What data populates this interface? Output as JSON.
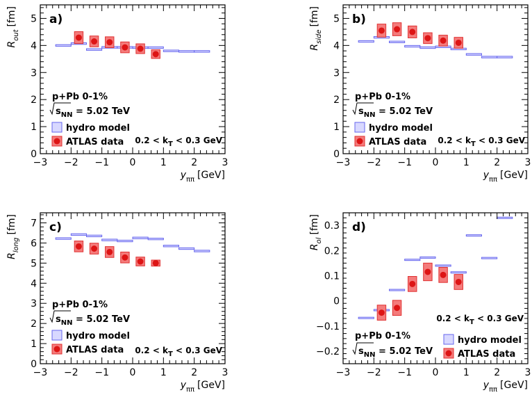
{
  "chart_data": [
    {
      "type": "scatter",
      "label": "a)",
      "xlabel_main": "y",
      "xlabel_sub": "ππ",
      "xlabel_unit": "[GeV]",
      "ylabel_main": "R",
      "ylabel_sub": "out",
      "ylabel_unit": "[fm]",
      "xlim": [
        -3,
        3
      ],
      "ylim": [
        0,
        5.5
      ],
      "xticks": [
        "-3",
        "-2",
        "-1",
        "0",
        "1",
        "2",
        "3"
      ],
      "yticks": [
        "0",
        "1",
        "2",
        "3",
        "4",
        "5"
      ],
      "ytick_values": [
        0,
        1,
        2,
        3,
        4,
        5
      ],
      "system": "p+Pb 0-1%",
      "energy_prefix": "s",
      "energy_sub": "NN",
      "energy_value": " = 5.02 TeV",
      "kt_text_pre": "0.2 < k",
      "kt_text_sub": "T",
      "kt_text_post": " < 0.3 GeV",
      "legend": [
        "hydro model",
        "ATLAS data"
      ],
      "legend_position": "bottom-left",
      "hydro": {
        "x": [
          -2.25,
          -1.75,
          -1.25,
          -0.75,
          -0.25,
          0.25,
          0.75,
          1.25,
          1.75,
          2.25
        ],
        "y": [
          4.0,
          4.07,
          3.85,
          3.93,
          3.93,
          3.92,
          3.92,
          3.8,
          3.78,
          3.78
        ],
        "halfwidth": [
          0.25,
          0.25,
          0.25,
          0.25,
          0.25,
          0.25,
          0.25,
          0.25,
          0.25,
          0.25
        ],
        "err": [
          0.03,
          0.03,
          0.03,
          0.03,
          0.03,
          0.03,
          0.03,
          0.03,
          0.03,
          0.03
        ]
      },
      "atlas": {
        "x": [
          -1.75,
          -1.25,
          -0.75,
          -0.25,
          0.25,
          0.75
        ],
        "y": [
          4.29,
          4.15,
          4.12,
          3.93,
          3.88,
          3.68
        ],
        "syst": [
          0.22,
          0.2,
          0.2,
          0.2,
          0.18,
          0.16
        ],
        "syst_halfwidth": [
          0.14,
          0.14,
          0.14,
          0.14,
          0.14,
          0.14
        ]
      }
    },
    {
      "type": "scatter",
      "label": "b)",
      "xlabel_main": "y",
      "xlabel_sub": "ππ",
      "xlabel_unit": "[GeV]",
      "ylabel_main": "R",
      "ylabel_sub": "side",
      "ylabel_unit": "[fm]",
      "xlim": [
        -3,
        3
      ],
      "ylim": [
        0,
        5.5
      ],
      "xticks": [
        "-3",
        "-2",
        "-1",
        "0",
        "1",
        "2",
        "3"
      ],
      "yticks": [
        "0",
        "1",
        "2",
        "3",
        "4",
        "5"
      ],
      "ytick_values": [
        0,
        1,
        2,
        3,
        4,
        5
      ],
      "system": "p+Pb 0-1%",
      "energy_prefix": "s",
      "energy_sub": "NN",
      "energy_value": " = 5.02 TeV",
      "kt_text_pre": "0.2 < k",
      "kt_text_sub": "T",
      "kt_text_post": " < 0.3 GeV",
      "legend": [
        "hydro model",
        "ATLAS data"
      ],
      "legend_position": "bottom-left",
      "hydro": {
        "x": [
          -2.25,
          -1.75,
          -1.25,
          -0.75,
          -0.25,
          0.25,
          0.75,
          1.25,
          1.75,
          2.25
        ],
        "y": [
          4.15,
          4.3,
          4.13,
          3.97,
          3.92,
          3.95,
          3.87,
          3.67,
          3.57,
          3.57
        ],
        "halfwidth": [
          0.25,
          0.25,
          0.25,
          0.25,
          0.25,
          0.25,
          0.25,
          0.25,
          0.25,
          0.25
        ],
        "err": [
          0.03,
          0.03,
          0.03,
          0.03,
          0.03,
          0.03,
          0.03,
          0.03,
          0.03,
          0.03
        ]
      },
      "atlas": {
        "x": [
          -1.75,
          -1.25,
          -0.75,
          -0.25,
          0.25,
          0.75
        ],
        "y": [
          4.55,
          4.6,
          4.5,
          4.27,
          4.18,
          4.1
        ],
        "syst": [
          0.24,
          0.24,
          0.22,
          0.2,
          0.2,
          0.2
        ],
        "syst_halfwidth": [
          0.14,
          0.14,
          0.14,
          0.14,
          0.14,
          0.14
        ]
      }
    },
    {
      "type": "scatter",
      "label": "c)",
      "xlabel_main": "y",
      "xlabel_sub": "ππ",
      "xlabel_unit": "[GeV]",
      "ylabel_main": "R",
      "ylabel_sub": "long",
      "ylabel_unit": "[fm]",
      "xlim": [
        -3,
        3
      ],
      "ylim": [
        0,
        7.5
      ],
      "xticks": [
        "-3",
        "-2",
        "-1",
        "0",
        "1",
        "2",
        "3"
      ],
      "yticks": [
        "0",
        "1",
        "2",
        "3",
        "4",
        "5",
        "6",
        "7"
      ],
      "ytick_values": [
        0,
        1,
        2,
        3,
        4,
        5,
        6,
        7
      ],
      "system": "p+Pb 0-1%",
      "energy_prefix": "s",
      "energy_sub": "NN",
      "energy_value": " = 5.02 TeV",
      "kt_text_pre": "0.2 < k",
      "kt_text_sub": "T",
      "kt_text_post": " < 0.3 GeV",
      "legend": [
        "hydro model",
        "ATLAS data"
      ],
      "legend_position": "bottom-left",
      "hydro": {
        "x": [
          -2.25,
          -1.75,
          -1.25,
          -0.75,
          -0.25,
          0.25,
          0.75,
          1.25,
          1.75,
          2.25
        ],
        "y": [
          6.22,
          6.42,
          6.35,
          6.15,
          6.1,
          6.25,
          6.2,
          5.85,
          5.72,
          5.6
        ],
        "halfwidth": [
          0.25,
          0.25,
          0.25,
          0.25,
          0.25,
          0.25,
          0.25,
          0.25,
          0.25,
          0.25
        ],
        "err": [
          0.04,
          0.04,
          0.04,
          0.04,
          0.04,
          0.04,
          0.04,
          0.04,
          0.04,
          0.04
        ]
      },
      "atlas": {
        "x": [
          -1.75,
          -1.25,
          -0.75,
          -0.25,
          0.25,
          0.75
        ],
        "y": [
          5.83,
          5.72,
          5.55,
          5.28,
          5.08,
          5.0
        ],
        "syst": [
          0.27,
          0.27,
          0.27,
          0.27,
          0.22,
          0.15
        ],
        "syst_halfwidth": [
          0.14,
          0.14,
          0.14,
          0.14,
          0.14,
          0.14
        ]
      }
    },
    {
      "type": "scatter",
      "label": "d)",
      "xlabel_main": "y",
      "xlabel_sub": "ππ",
      "xlabel_unit": "[GeV]",
      "ylabel_main": "R",
      "ylabel_sub": "ol",
      "ylabel_unit": "[fm]",
      "xlim": [
        -3,
        3
      ],
      "ylim": [
        -0.25,
        0.35
      ],
      "xticks": [
        "-3",
        "-2",
        "-1",
        "0",
        "1",
        "2",
        "3"
      ],
      "yticks": [
        "-0.2",
        "-0.1",
        "0",
        "0.1",
        "0.2",
        "0.3"
      ],
      "ytick_values": [
        -0.2,
        -0.1,
        0,
        0.1,
        0.2,
        0.3
      ],
      "system": "p+Pb 0-1%",
      "energy_prefix": "s",
      "energy_sub": "NN",
      "energy_value": " = 5.02 TeV",
      "kt_text_pre": "0.2 < k",
      "kt_text_sub": "T",
      "kt_text_post": " < 0.3 GeV",
      "legend": [
        "hydro model",
        "ATLAS data"
      ],
      "legend_position": "bottom-right",
      "hydro": {
        "x": [
          -2.25,
          -1.75,
          -1.25,
          -0.75,
          -0.25,
          0.25,
          0.75,
          1.25,
          1.75,
          2.25
        ],
        "y": [
          -0.068,
          -0.037,
          0.043,
          0.163,
          0.172,
          0.14,
          0.113,
          0.26,
          0.17,
          0.33
        ],
        "halfwidth": [
          0.25,
          0.25,
          0.25,
          0.25,
          0.25,
          0.25,
          0.25,
          0.25,
          0.25,
          0.25
        ],
        "err": [
          0.001,
          0.001,
          0.001,
          0.001,
          0.001,
          0.001,
          0.001,
          0.001,
          0.001,
          0.001
        ]
      },
      "atlas": {
        "x": [
          -1.75,
          -1.25,
          -0.75,
          -0.25,
          0.25,
          0.75
        ],
        "y": [
          -0.047,
          -0.028,
          0.067,
          0.115,
          0.103,
          0.075
        ],
        "syst": [
          0.03,
          0.03,
          0.03,
          0.035,
          0.03,
          0.03
        ],
        "syst_halfwidth": [
          0.14,
          0.14,
          0.14,
          0.14,
          0.14,
          0.14
        ]
      }
    }
  ],
  "colors": {
    "hydro_fill": "#d8d8ff",
    "hydro_stroke": "#6666ee",
    "atlas_box_fill": "#f47c7c",
    "atlas_box_stroke": "#e03030",
    "atlas_marker": "#dd1515",
    "axis": "#000000"
  }
}
